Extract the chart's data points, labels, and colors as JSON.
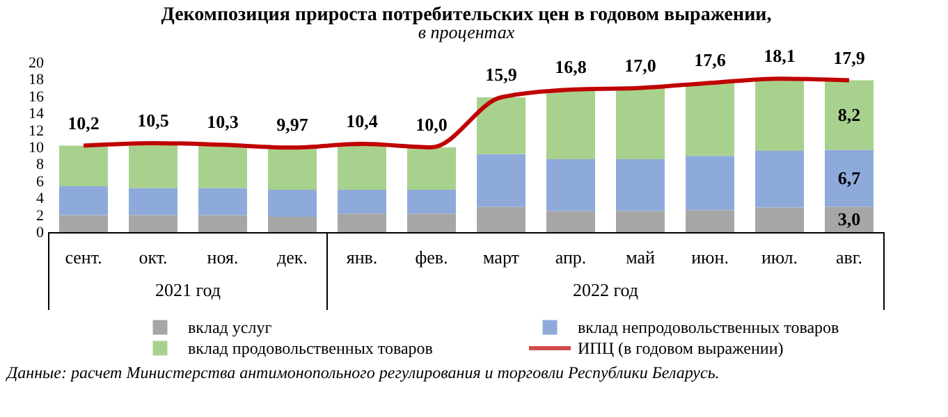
{
  "chart_data": {
    "type": "bar",
    "stacked": true,
    "title": "Декомпозиция прироста потребительских цен в годовом выражении,",
    "subtitle": "в процентах",
    "categories": [
      "сент.",
      "окт.",
      "ноя.",
      "дек.",
      "янв.",
      "фев.",
      "март",
      "апр.",
      "май",
      "июн.",
      "июл.",
      "авг."
    ],
    "series": [
      {
        "name": "вклад услуг",
        "color": "#a6a6a6",
        "values": [
          2.0,
          2.0,
          2.0,
          1.8,
          2.2,
          2.2,
          3.0,
          2.5,
          2.5,
          2.6,
          2.9,
          3.0
        ],
        "value_labels": [
          null,
          null,
          null,
          null,
          null,
          null,
          null,
          null,
          null,
          null,
          null,
          "3,0"
        ]
      },
      {
        "name": "вклад непродовольственных товаров",
        "color": "#8eaadb",
        "values": [
          3.4,
          3.2,
          3.2,
          3.2,
          2.8,
          2.8,
          6.2,
          6.1,
          6.1,
          6.4,
          6.7,
          6.7
        ],
        "value_labels": [
          null,
          null,
          null,
          null,
          null,
          null,
          null,
          null,
          null,
          null,
          null,
          "6,7"
        ]
      },
      {
        "name": "вклад продовольственных товаров",
        "color": "#a9d18e",
        "values": [
          4.8,
          5.3,
          5.1,
          5.0,
          5.4,
          5.0,
          6.7,
          8.2,
          8.4,
          8.6,
          8.5,
          8.2
        ],
        "value_labels": [
          null,
          null,
          null,
          null,
          null,
          null,
          null,
          null,
          null,
          null,
          null,
          "8,2"
        ]
      },
      {
        "name": "ИПЦ (в годовом выражении)",
        "color": "#c00000",
        "type": "line",
        "line_style": "solid",
        "values": [
          10.2,
          10.5,
          10.3,
          9.97,
          10.4,
          10.0,
          15.9,
          16.8,
          17.0,
          17.6,
          18.1,
          17.9
        ],
        "value_labels": [
          "10,2",
          "10,5",
          "10,3",
          "9,97",
          "10,4",
          "10,0",
          "15,9",
          "16,8",
          "17,0",
          "17,6",
          "18,1",
          "17,9"
        ]
      }
    ],
    "ylim": [
      0,
      20
    ],
    "yticks": [
      0,
      2,
      4,
      6,
      8,
      10,
      12,
      14,
      16,
      18,
      20
    ],
    "grid": false,
    "legend": "bottom",
    "marker": "none",
    "annotations": [
      "2021 год",
      "2022 год",
      "Данные: расчет Министерства антимонопольного регулирования и торговли Республики Беларусь."
    ]
  }
}
